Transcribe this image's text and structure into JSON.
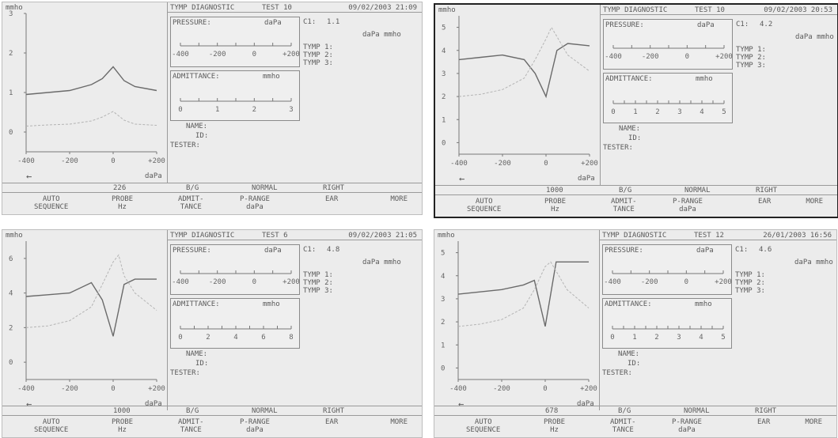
{
  "common": {
    "app_title": "TYMP DIAGNOSTIC",
    "unit_mmho": "mmho",
    "pressure_label": "PRESSURE:",
    "pressure_unit": "daPa",
    "admittance_label": "ADMITTANCE:",
    "admittance_unit": "mmho",
    "units_readout": "daPa  mmho",
    "tymp1": "TYMP 1:",
    "tymp2": "TYMP 2:",
    "tymp3": "TYMP 3:",
    "name_label": "NAME:",
    "id_label": "ID:",
    "tester_label": "TESTER:",
    "arrow_left": "←",
    "x_unit": "daPa",
    "x_ticks": [
      "-400",
      "-200",
      "0",
      "+200"
    ],
    "pressure_ticks": [
      "-400",
      "-200",
      "0",
      "+200"
    ],
    "buttons": {
      "auto": "AUTO",
      "sequence": "SEQUENCE",
      "probe": "PROBE",
      "hz": "Hz",
      "admit": "ADMIT-",
      "tance": "TANCE",
      "prange": "P-RANGE",
      "prange_unit": "daPa",
      "ear": "EAR",
      "more": "MORE"
    },
    "status": {
      "ratio": "B/G",
      "normal": "NORMAL",
      "ear_side": "RIGHT"
    }
  },
  "panels": [
    {
      "test": "TEST 10",
      "datetime": "09/02/2003  21:09",
      "c1_label": "C1:",
      "c1_value": "1.1",
      "y_ticks": [
        "3",
        "2",
        "1",
        "0"
      ],
      "admittance_ticks": [
        "0",
        "1",
        "2",
        "3"
      ],
      "probe_hz": "226",
      "chart_data": {
        "type": "line",
        "x": [
          -400,
          -300,
          -200,
          -100,
          -50,
          0,
          50,
          100,
          200
        ],
        "series": [
          {
            "values": [
              0.95,
              1.0,
              1.05,
              1.2,
              1.35,
              1.65,
              1.3,
              1.15,
              1.05
            ]
          },
          {
            "values": [
              0.15,
              0.18,
              0.2,
              0.28,
              0.38,
              0.52,
              0.3,
              0.2,
              0.17
            ]
          }
        ],
        "xlim": [
          -400,
          200
        ],
        "ylim": [
          -0.5,
          3
        ]
      }
    },
    {
      "test": "TEST 10",
      "datetime": "09/02/2003  20:53",
      "c1_label": "C1:",
      "c1_value": "4.2",
      "y_ticks": [
        "5",
        "4",
        "3",
        "2",
        "1",
        "0"
      ],
      "admittance_ticks": [
        "0",
        "1",
        "2",
        "3",
        "4",
        "5"
      ],
      "probe_hz": "1000",
      "chart_data": {
        "type": "line",
        "x": [
          -400,
          -300,
          -200,
          -100,
          -50,
          0,
          25,
          50,
          100,
          200
        ],
        "series": [
          {
            "values": [
              3.6,
              3.7,
              3.8,
              3.6,
              3.0,
              2.0,
              3.0,
              4.0,
              4.3,
              4.2
            ]
          },
          {
            "values": [
              2.0,
              2.1,
              2.3,
              2.8,
              3.6,
              4.5,
              5.0,
              4.6,
              3.8,
              3.1
            ]
          }
        ],
        "xlim": [
          -400,
          200
        ],
        "ylim": [
          -0.5,
          5.5
        ]
      }
    },
    {
      "test": "TEST 6",
      "datetime": "09/02/2003  21:05",
      "c1_label": "C1:",
      "c1_value": "4.8",
      "y_ticks": [
        "6",
        "4",
        "2",
        "0"
      ],
      "admittance_ticks": [
        "0",
        "2",
        "4",
        "6",
        "8"
      ],
      "probe_hz": "1000",
      "chart_data": {
        "type": "line",
        "x": [
          -400,
          -300,
          -200,
          -100,
          -50,
          0,
          25,
          50,
          100,
          200
        ],
        "series": [
          {
            "values": [
              3.8,
              3.9,
              4.0,
              4.6,
              3.6,
              1.5,
              3.0,
              4.5,
              4.8,
              4.8
            ]
          },
          {
            "values": [
              2.0,
              2.1,
              2.4,
              3.2,
              4.5,
              5.8,
              6.2,
              5.0,
              4.0,
              3.0
            ]
          }
        ],
        "xlim": [
          -400,
          200
        ],
        "ylim": [
          -1,
          7
        ]
      }
    },
    {
      "test": "TEST 12",
      "datetime": "26/01/2003  16:56",
      "c1_label": "C1:",
      "c1_value": "4.6",
      "y_ticks": [
        "5",
        "4",
        "3",
        "2",
        "1",
        "0"
      ],
      "admittance_ticks": [
        "0",
        "1",
        "2",
        "3",
        "4",
        "5"
      ],
      "probe_hz": "678",
      "chart_data": {
        "type": "line",
        "x": [
          -400,
          -300,
          -200,
          -100,
          -50,
          0,
          25,
          50,
          100,
          200
        ],
        "series": [
          {
            "values": [
              3.2,
              3.3,
              3.4,
              3.6,
              3.8,
              1.8,
              3.2,
              4.6,
              4.6,
              4.6
            ]
          },
          {
            "values": [
              1.8,
              1.9,
              2.1,
              2.6,
              3.4,
              4.4,
              4.6,
              4.2,
              3.4,
              2.6
            ]
          }
        ],
        "xlim": [
          -400,
          200
        ],
        "ylim": [
          -0.5,
          5.5
        ]
      }
    }
  ]
}
